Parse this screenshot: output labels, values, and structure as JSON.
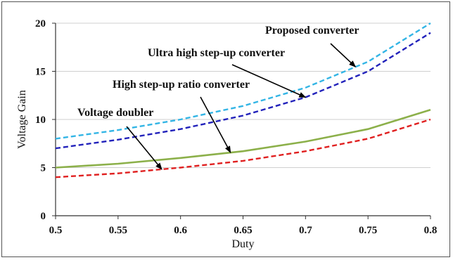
{
  "chart_data": {
    "type": "line",
    "title": "",
    "xlabel": "Duty",
    "ylabel": "Voltage Gain",
    "xlim": [
      0.5,
      0.8
    ],
    "ylim": [
      0,
      20
    ],
    "grid": "horizontal",
    "x_ticks": [
      0.5,
      0.55,
      0.6,
      0.65,
      0.7,
      0.75,
      0.8
    ],
    "x_tick_labels": [
      "0.5",
      "0.55",
      "0.6",
      "0.65",
      "0.7",
      "0.75",
      "0.8"
    ],
    "y_ticks": [
      0,
      5,
      10,
      15,
      20
    ],
    "y_tick_labels": [
      "0",
      "5",
      "10",
      "15",
      "20"
    ],
    "series": [
      {
        "name": "Proposed converter",
        "color": "#33b5e5",
        "dashed": true,
        "x": [
          0.5,
          0.55,
          0.6,
          0.65,
          0.7,
          0.75,
          0.8
        ],
        "values": [
          8.0,
          8.9,
          10.0,
          11.4,
          13.3,
          16.0,
          20.0
        ]
      },
      {
        "name": "Ultra high step-up converter",
        "color": "#2222bb",
        "dashed": true,
        "x": [
          0.5,
          0.55,
          0.6,
          0.65,
          0.7,
          0.75,
          0.8
        ],
        "values": [
          7.0,
          7.9,
          9.0,
          10.4,
          12.3,
          15.0,
          19.0
        ]
      },
      {
        "name": "High step-up ratio converter",
        "color": "#8cb04a",
        "dashed": false,
        "x": [
          0.5,
          0.55,
          0.6,
          0.65,
          0.7,
          0.75,
          0.8
        ],
        "values": [
          5.0,
          5.4,
          6.0,
          6.7,
          7.7,
          9.0,
          11.0
        ]
      },
      {
        "name": "Voltage doubler",
        "color": "#e02020",
        "dashed": true,
        "x": [
          0.5,
          0.55,
          0.6,
          0.65,
          0.7,
          0.75,
          0.8
        ],
        "values": [
          4.0,
          4.4,
          5.0,
          5.7,
          6.7,
          8.0,
          10.0
        ]
      }
    ],
    "annotations": [
      {
        "text": "Proposed converter",
        "points_to_series": 0,
        "arrow_x": 0.74
      },
      {
        "text": "Ultra high step-up converter",
        "points_to_series": 1,
        "arrow_x": 0.7
      },
      {
        "text": "High step-up ratio converter",
        "points_to_series": 2,
        "arrow_x": 0.64
      },
      {
        "text": "Voltage doubler",
        "points_to_series": 3,
        "arrow_x": 0.585
      }
    ]
  }
}
